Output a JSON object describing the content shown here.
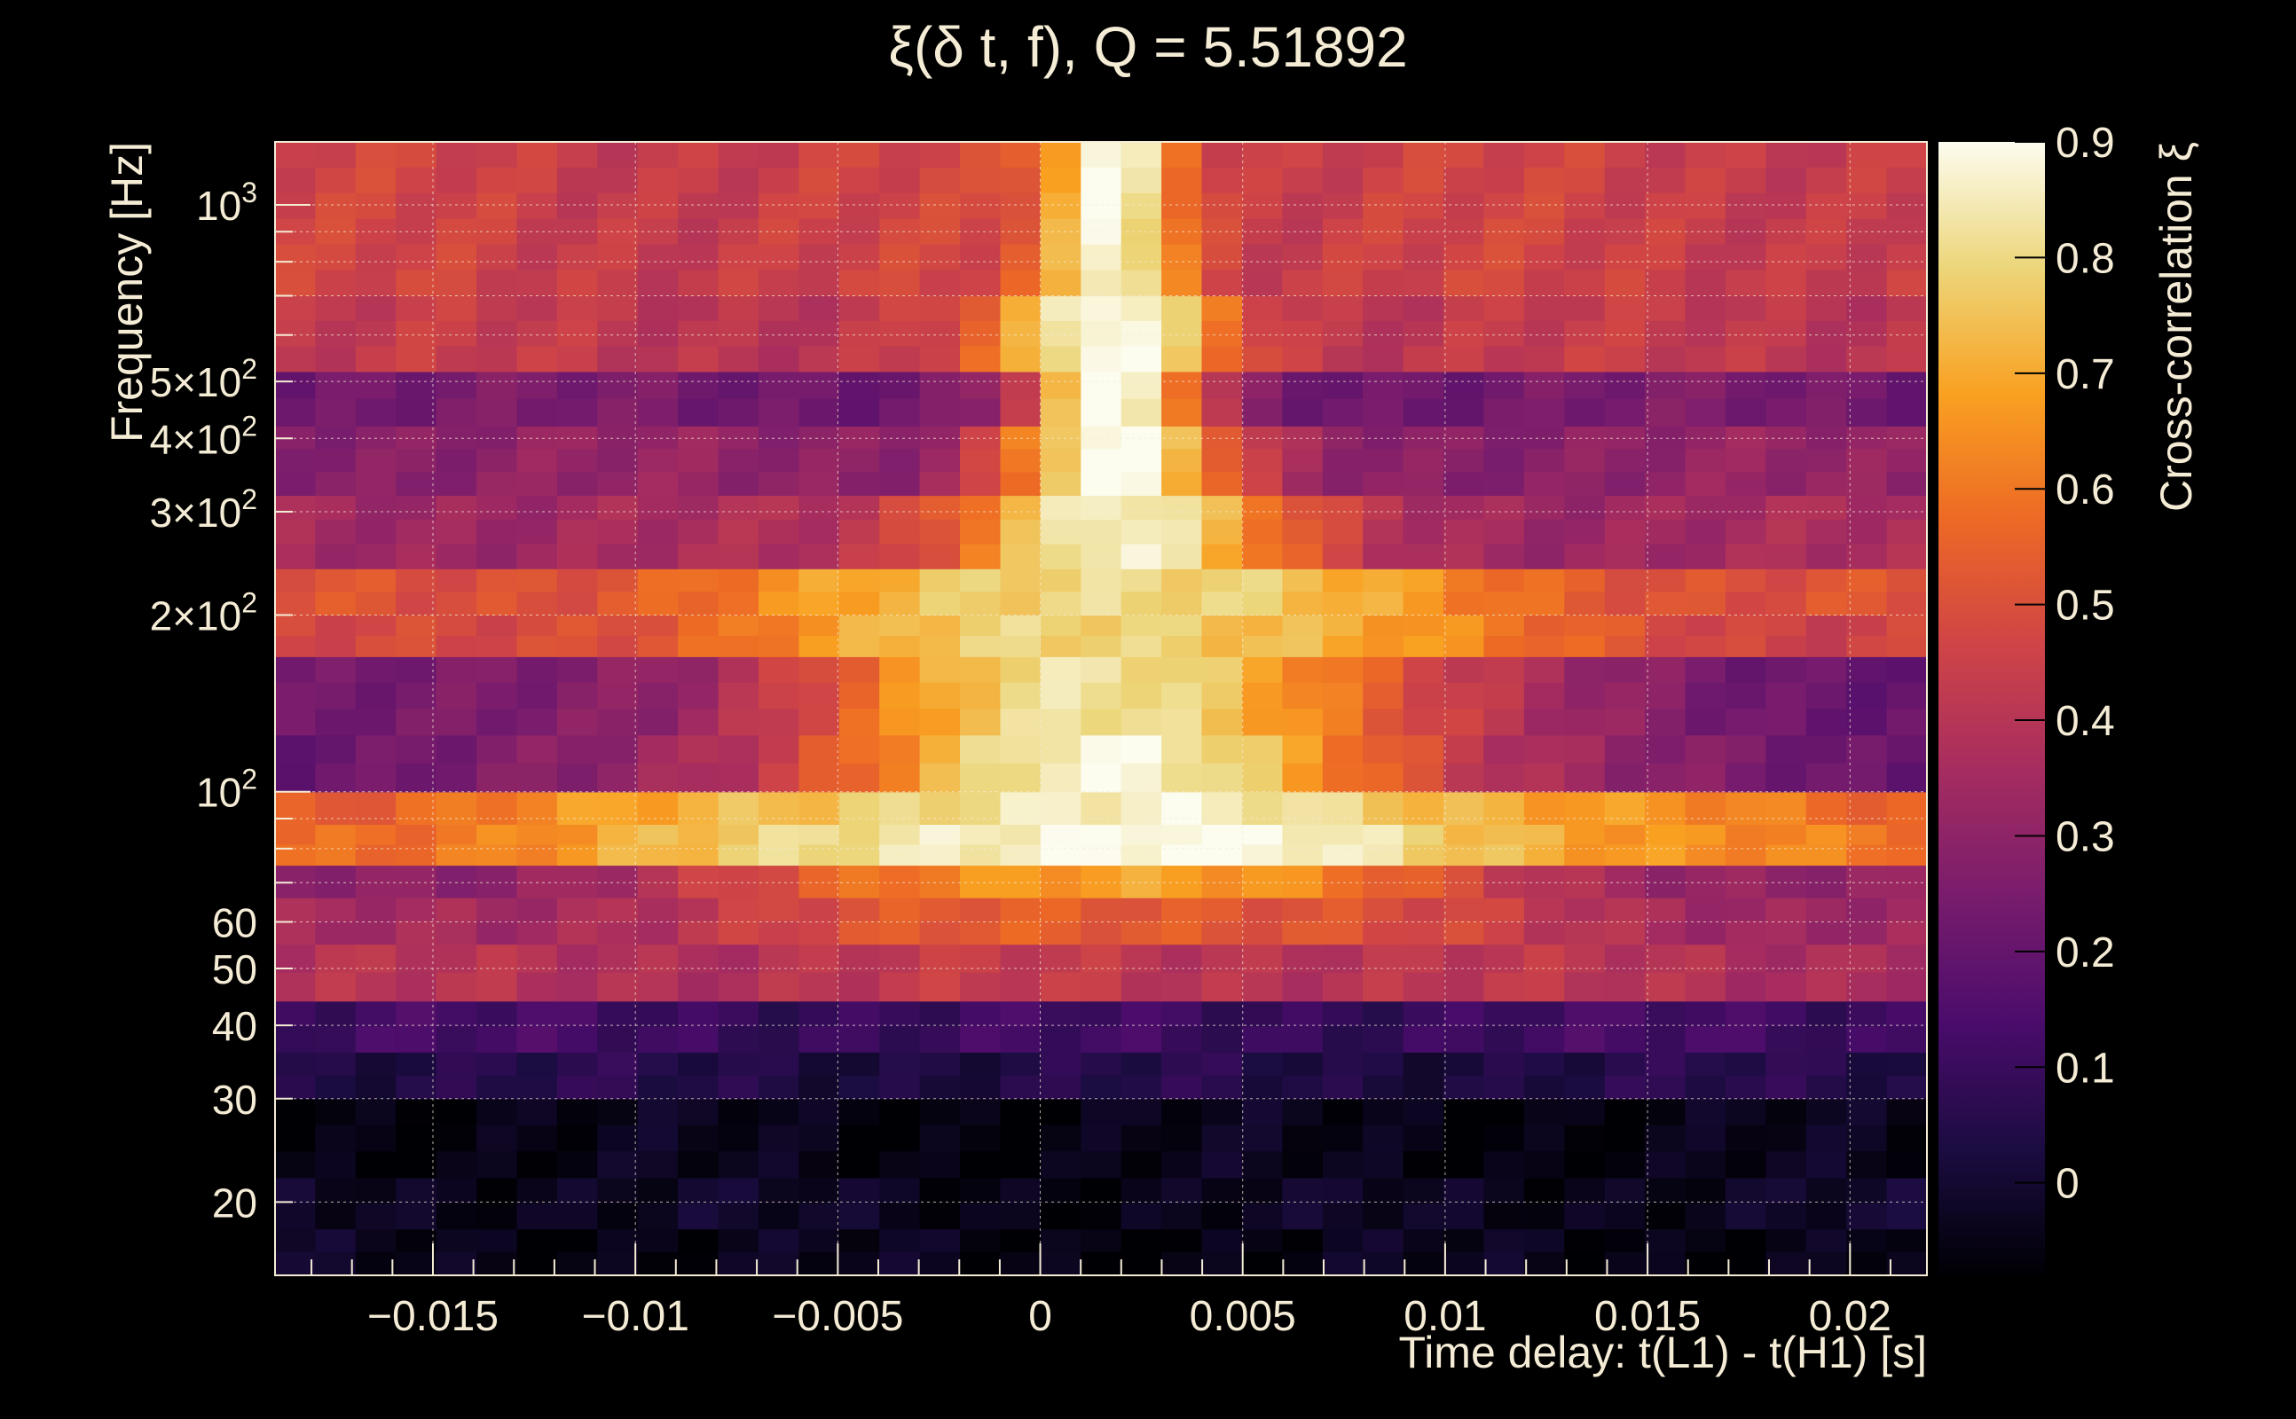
{
  "chart_data": {
    "type": "heatmap",
    "title": "ξ(δ t, f), Q = 5.51892",
    "xlabel": "Time delay: t(L1) - t(H1) [s]",
    "ylabel": "Frequency [Hz]",
    "colorbar_label": "Cross-correlation ξ",
    "xlim": [
      -0.0189,
      0.0219
    ],
    "ylim": [
      15,
      1280
    ],
    "y_scale": "log",
    "zlim": [
      -0.08,
      0.9
    ],
    "grid": true,
    "colormap": [
      "#000004",
      "#1b0c41",
      "#4a0c6b",
      "#781c6d",
      "#a52c60",
      "#cf4446",
      "#ed6925",
      "#f9a121",
      "#ecd67a",
      "#fcfcef"
    ],
    "x_ticks": [
      -0.015,
      -0.01,
      -0.005,
      0,
      0.005,
      0.01,
      0.015,
      0.02
    ],
    "x_tick_labels": [
      "−0.015",
      "−0.01",
      "−0.005",
      "0",
      "0.005",
      "0.01",
      "0.015",
      "0.02"
    ],
    "y_ticks": [
      {
        "value": 20,
        "mant": "20"
      },
      {
        "value": 30,
        "mant": "30"
      },
      {
        "value": 40,
        "mant": "40"
      },
      {
        "value": 50,
        "mant": "50"
      },
      {
        "value": 60,
        "mant": "60"
      },
      {
        "value": 100,
        "mant": "10",
        "exp": "2"
      },
      {
        "value": 200,
        "mant": "2×10",
        "exp": "2"
      },
      {
        "value": 300,
        "mant": "3×10",
        "exp": "2"
      },
      {
        "value": 400,
        "mant": "4×10",
        "exp": "2"
      },
      {
        "value": 500,
        "mant": "5×10",
        "exp": "2"
      },
      {
        "value": 1000,
        "mant": "10",
        "exp": "3"
      }
    ],
    "z_ticks": [
      0,
      0.1,
      0.2,
      0.3,
      0.4,
      0.5,
      0.6,
      0.7,
      0.8,
      0.9
    ],
    "z_tick_labels": [
      "0",
      "0.1",
      "0.2",
      "0.3",
      "0.4",
      "0.5",
      "0.6",
      "0.7",
      "0.8",
      "0.9"
    ],
    "frequency_bands": [
      {
        "f_low": 15,
        "f_high": 18,
        "base": -0.04,
        "peak": -0.05,
        "width": 0.008
      },
      {
        "f_low": 18,
        "f_high": 22,
        "base": -0.02,
        "peak": -0.04,
        "width": 0.008
      },
      {
        "f_low": 22,
        "f_high": 30,
        "base": -0.05,
        "peak": -0.05,
        "width": 0.01
      },
      {
        "f_low": 30,
        "f_high": 36,
        "base": 0.05,
        "peak": 0.04,
        "width": 0.01
      },
      {
        "f_low": 36,
        "f_high": 44,
        "base": 0.12,
        "peak": 0.1,
        "width": 0.01
      },
      {
        "f_low": 44,
        "f_high": 55,
        "base": 0.38,
        "peak": 0.42,
        "width": 0.008
      },
      {
        "f_low": 55,
        "f_high": 66,
        "base": 0.32,
        "peak": 0.55,
        "width": 0.008
      },
      {
        "f_low": 66,
        "f_high": 75,
        "base": 0.28,
        "peak": 0.7,
        "width": 0.007
      },
      {
        "f_low": 75,
        "f_high": 88,
        "base": 0.55,
        "peak": 0.9,
        "width": 0.009
      },
      {
        "f_low": 88,
        "f_high": 100,
        "base": 0.5,
        "peak": 0.85,
        "width": 0.01
      },
      {
        "f_low": 100,
        "f_high": 125,
        "base": 0.22,
        "peak": 0.86,
        "width": 0.006
      },
      {
        "f_low": 125,
        "f_high": 170,
        "base": 0.22,
        "peak": 0.82,
        "width": 0.006
      },
      {
        "f_low": 170,
        "f_high": 200,
        "base": 0.45,
        "peak": 0.8,
        "width": 0.007
      },
      {
        "f_low": 200,
        "f_high": 240,
        "base": 0.5,
        "peak": 0.82,
        "width": 0.006
      },
      {
        "f_low": 240,
        "f_high": 320,
        "base": 0.35,
        "peak": 0.88,
        "width": 0.003
      },
      {
        "f_low": 320,
        "f_high": 420,
        "base": 0.3,
        "peak": 0.9,
        "width": 0.002
      },
      {
        "f_low": 420,
        "f_high": 520,
        "base": 0.24,
        "peak": 0.92,
        "width": 0.0015
      },
      {
        "f_low": 520,
        "f_high": 700,
        "base": 0.42,
        "peak": 0.9,
        "width": 0.002
      },
      {
        "f_low": 700,
        "f_high": 1280,
        "base": 0.45,
        "peak": 0.9,
        "width": 0.0012
      }
    ],
    "peak_delay": 0.0018
  }
}
